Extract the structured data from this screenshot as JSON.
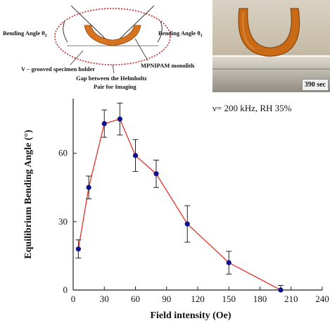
{
  "diagram": {
    "label_bending_angle_2": "Bending Angle θ",
    "label_bending_angle_2_sub": "2",
    "label_bending_angle_1": "Bending Angle θ",
    "label_bending_angle_1_sub": "1",
    "label_holder": "V – grooved specimen holder",
    "label_monolith": "MPNIPAM monolith",
    "label_gap_line1": "Gap between the Helmholtz",
    "label_gap_line2": "Pair for Imaging",
    "colors": {
      "specimen": "#d8731f",
      "ellipse": "#cc2222"
    }
  },
  "photo": {
    "caption": "390 sec",
    "colors": {
      "specimen": "#c96a16",
      "background": "#c8bfae"
    }
  },
  "chart_data": {
    "type": "line",
    "annotation": "ν= 200 kHz, RH 35%",
    "xlabel": "Field intensity (Oe)",
    "ylabel": "Equilibrium Bending Angle (°)",
    "xlim": [
      0,
      240
    ],
    "ylim": [
      0,
      84
    ],
    "xticks": [
      0,
      30,
      60,
      90,
      120,
      150,
      180,
      210,
      240
    ],
    "yticks": [
      0,
      30,
      60
    ],
    "x_tick_labels": [
      "0",
      "30",
      "60",
      "90",
      "120",
      "150",
      "180",
      "210",
      "240"
    ],
    "y_tick_labels": [
      "0",
      "30",
      "60"
    ],
    "grid": false,
    "series": [
      {
        "x": [
          5,
          15,
          30,
          45,
          60,
          80,
          110,
          150,
          200
        ],
        "y": [
          18,
          45,
          73,
          75,
          59,
          51,
          29,
          12,
          0
        ],
        "err": [
          4,
          5,
          6,
          7,
          7,
          6,
          8,
          5,
          2
        ],
        "marker_color": "#10108a",
        "line_color": "#e8302a"
      }
    ]
  }
}
